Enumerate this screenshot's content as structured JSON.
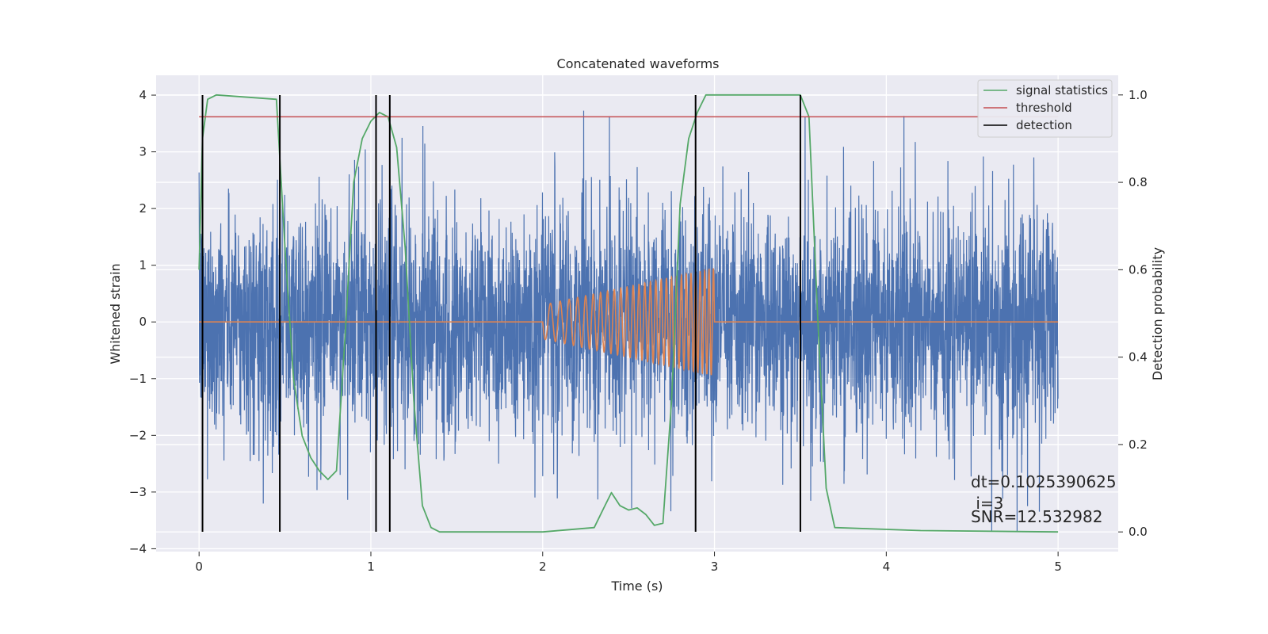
{
  "chart_data": {
    "type": "line",
    "title": "Concatenated waveforms",
    "xlabel": "Time (s)",
    "ylabel": "Whitened strain",
    "y2label": "Detection probability",
    "xlim": [
      -0.25,
      5.35
    ],
    "ylim": [
      -4.05,
      4.35
    ],
    "y2lim": [
      -0.045,
      1.045
    ],
    "xticks": [
      0,
      1,
      2,
      3,
      4,
      5
    ],
    "xtick_labels": [
      "0",
      "1",
      "2",
      "3",
      "4",
      "5"
    ],
    "yticks": [
      4,
      3,
      2,
      1,
      0,
      -1,
      -2,
      -3,
      -4
    ],
    "ytick_labels": [
      "4",
      "3",
      "2",
      "1",
      "0",
      "−1",
      "−2",
      "−3",
      "−4"
    ],
    "y2ticks": [
      1.0,
      0.8,
      0.6,
      0.4,
      0.2,
      0.0
    ],
    "y2tick_labels": [
      "1.0",
      "0.8",
      "0.6",
      "0.4",
      "0.2",
      "0.0"
    ],
    "grid": true,
    "legend_position": "top-right",
    "legend": [
      {
        "label": "signal statistics",
        "color": "#55a868"
      },
      {
        "label": "threshold",
        "color": "#c44e52"
      },
      {
        "label": "detection",
        "color": "#000000"
      }
    ],
    "series": [
      {
        "name": "whitened strain noise",
        "axis": "left",
        "color": "#4c72b0",
        "x_range": [
          0,
          5
        ],
        "approx_envelope": [
          -3.7,
          3.9
        ]
      },
      {
        "name": "injected chirp",
        "axis": "left",
        "color": "#dd8452",
        "x_range": [
          2.0,
          3.0
        ],
        "approx_amplitude_start": 0.3,
        "approx_amplitude_end": 0.95
      },
      {
        "name": "signal statistics",
        "axis": "right",
        "color": "#55a868",
        "x": [
          0,
          0.02,
          0.05,
          0.1,
          0.45,
          0.5,
          0.55,
          0.6,
          0.65,
          0.7,
          0.75,
          0.8,
          0.85,
          0.9,
          0.95,
          1.0,
          1.05,
          1.1,
          1.15,
          1.2,
          1.25,
          1.3,
          1.35,
          1.4,
          2.0,
          2.3,
          2.35,
          2.4,
          2.45,
          2.5,
          2.55,
          2.6,
          2.65,
          2.7,
          2.75,
          2.8,
          2.85,
          2.9,
          2.95,
          3.5,
          3.55,
          3.6,
          3.65,
          3.7,
          4.2,
          5.0
        ],
        "y": [
          0.6,
          0.9,
          0.99,
          1.0,
          0.99,
          0.65,
          0.35,
          0.22,
          0.17,
          0.14,
          0.12,
          0.14,
          0.45,
          0.8,
          0.9,
          0.94,
          0.96,
          0.95,
          0.88,
          0.65,
          0.3,
          0.06,
          0.01,
          0.0,
          0.0,
          0.01,
          0.05,
          0.09,
          0.06,
          0.05,
          0.055,
          0.04,
          0.015,
          0.02,
          0.3,
          0.75,
          0.9,
          0.96,
          1.0,
          1.0,
          0.95,
          0.5,
          0.1,
          0.01,
          0.003,
          0.0
        ]
      }
    ],
    "threshold": {
      "value": 0.95,
      "x_range": [
        0,
        5
      ],
      "color": "#c44e52"
    },
    "detections": {
      "x": [
        0.02,
        0.47,
        1.03,
        1.11,
        2.89,
        3.5
      ],
      "y_range": [
        -3.7,
        4.0
      ],
      "color": "#000000"
    },
    "annotations": {
      "dt": "dt=0.1025390625",
      "i": " i=3",
      "snr": "SNR=12.532982"
    }
  }
}
